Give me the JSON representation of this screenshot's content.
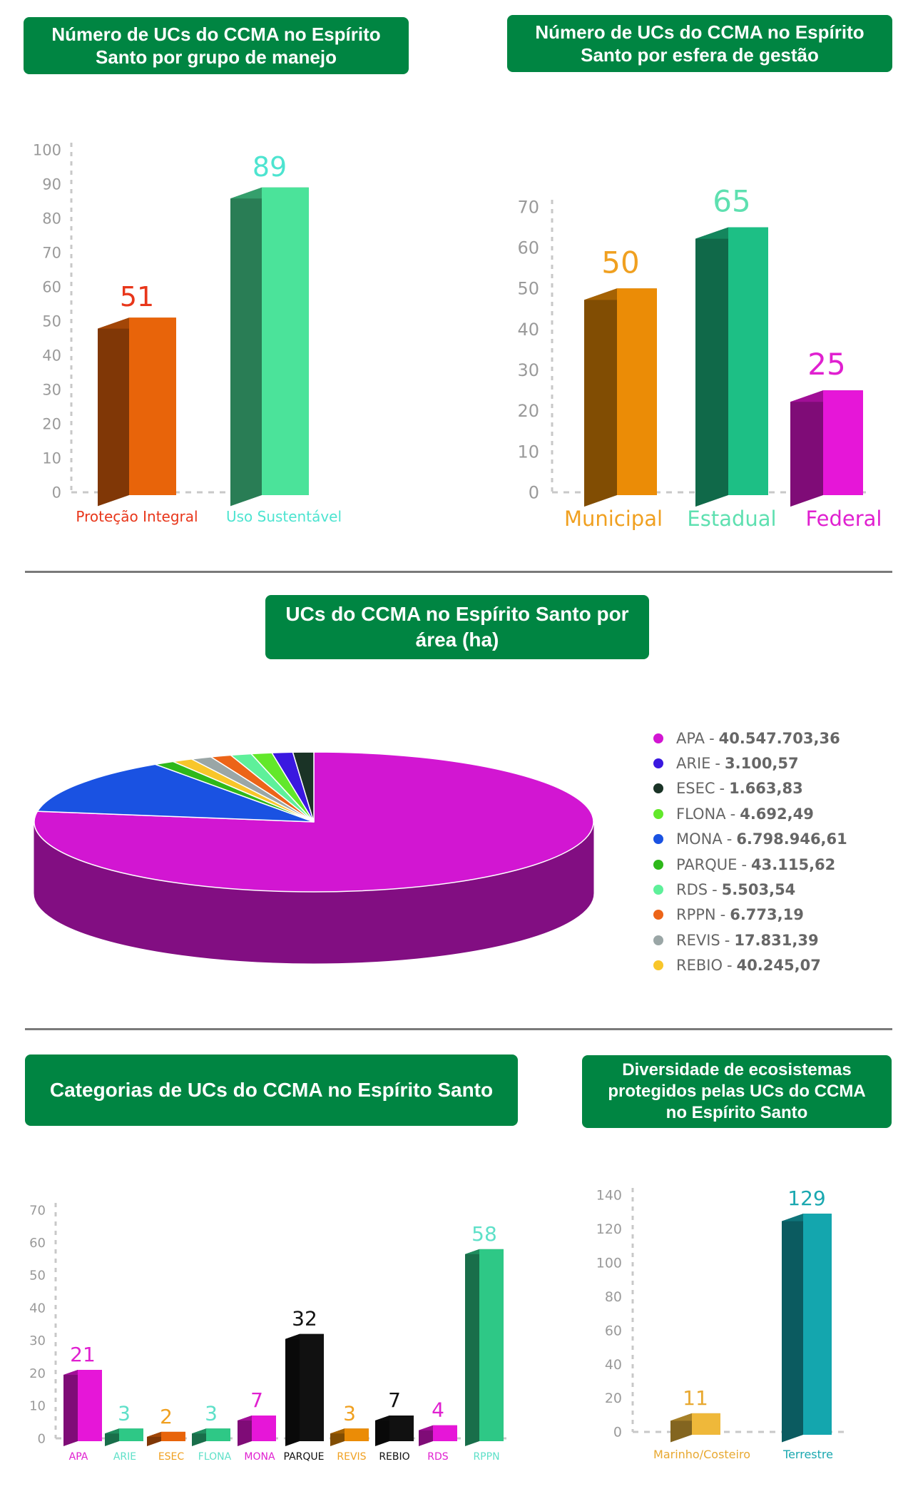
{
  "titles": {
    "grupo": "Número de UCs do CCMA no Espírito Santo por grupo de manejo",
    "esfera": "Número de UCs do CCMA no Espírito Santo por esfera de gestão",
    "area": "UCs do CCMA no Espírito Santo por área (ha)",
    "categorias": "Categorias de UCs do CCMA no Espírito Santo",
    "ecossistemas": "Diversidade de ecosistemas protegidos pelas UCs do CCMA no Espírito Santo"
  },
  "chart_data": [
    {
      "type": "bar",
      "title": "Número de UCs do CCMA no Espírito Santo por grupo de manejo",
      "categories": [
        "Proteção Integral",
        "Uso Sustentável"
      ],
      "values": [
        51,
        89
      ],
      "ylim": [
        0,
        100
      ],
      "yticks": [
        0,
        10,
        20,
        30,
        40,
        50,
        60,
        70,
        80,
        90,
        100
      ],
      "colors": [
        "#e8640a",
        "#4be39a"
      ],
      "label_colors": [
        "#e8361a",
        "#4de4d0"
      ]
    },
    {
      "type": "bar",
      "title": "Número de UCs do CCMA no Espírito Santo por esfera de gestão",
      "categories": [
        "Municipal",
        "Estadual",
        "Federal"
      ],
      "values": [
        50,
        65,
        25
      ],
      "ylim": [
        0,
        70
      ],
      "yticks": [
        0,
        10,
        20,
        30,
        40,
        50,
        60,
        70
      ],
      "colors": [
        "#eb8c06",
        "#1dbf85",
        "#e616d8"
      ],
      "label_colors": [
        "#f0a020",
        "#5ee0b0",
        "#e020d0"
      ]
    },
    {
      "type": "pie",
      "title": "UCs do CCMA no Espírito Santo por área (ha)",
      "labels": [
        "APA",
        "ARIE",
        "ESEC",
        "FLONA",
        "MONA",
        "PARQUE",
        "RDS",
        "RPPN",
        "REVIS",
        "REBIO"
      ],
      "value_text": [
        "40.547.703,36",
        "3.100,57",
        "1.663,83",
        "4.692,49",
        "6.798.946,61",
        "43.115,62",
        "5.503,54",
        "6.773,19",
        "17.831,39",
        "40.245,07"
      ],
      "values": [
        40547703.36,
        3100.57,
        1663.83,
        4692.49,
        6798946.61,
        43115.62,
        5503.54,
        6773.19,
        17831.39,
        40245.07
      ],
      "colors": [
        "#d216d2",
        "#3a18e0",
        "#1a3326",
        "#62e82a",
        "#1a52e2",
        "#2eb81a",
        "#5ef09a",
        "#ec6418",
        "#9aa6a6",
        "#f8c62a"
      ]
    },
    {
      "type": "bar",
      "title": "Categorias de UCs do CCMA no Espírito Santo",
      "categories": [
        "APA",
        "ARIE",
        "ESEC",
        "FLONA",
        "MONA",
        "PARQUE",
        "REVIS",
        "REBIO",
        "RDS",
        "RPPN"
      ],
      "values": [
        21,
        3,
        2,
        3,
        7,
        32,
        3,
        7,
        4,
        58
      ],
      "ylim": [
        0,
        70
      ],
      "yticks": [
        0,
        10,
        20,
        30,
        40,
        50,
        60,
        70
      ],
      "colors": [
        "#e616d8",
        "#2ec886",
        "#e8640a",
        "#2ec886",
        "#e616d8",
        "#111111",
        "#eb8c06",
        "#111111",
        "#e616d8",
        "#2ec886"
      ],
      "label_colors": [
        "#e020d0",
        "#5ee0c8",
        "#f0a020",
        "#5ee0c8",
        "#e020d0",
        "#111111",
        "#f0a020",
        "#111111",
        "#e020d0",
        "#5ee0c8"
      ]
    },
    {
      "type": "bar",
      "title": "Diversidade de ecosistemas protegidos pelas UCs do CCMA no Espírito Santo",
      "categories": [
        "Marinho/Costeiro",
        "Terrestre"
      ],
      "values": [
        11,
        129
      ],
      "ylim": [
        0,
        140
      ],
      "yticks": [
        0,
        20,
        40,
        60,
        80,
        100,
        120,
        140
      ],
      "colors": [
        "#efb83a",
        "#14a6ae"
      ],
      "label_colors": [
        "#e8a830",
        "#1aa8b0"
      ]
    }
  ]
}
